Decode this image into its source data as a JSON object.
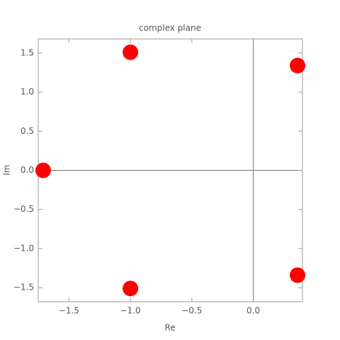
{
  "chart_data": {
    "type": "scatter",
    "title": "complex plane",
    "x_label": "Re",
    "y_label": "Im",
    "x": [
      -1.71,
      -1.0,
      -1.0,
      0.36,
      0.36
    ],
    "values": [
      0,
      1.51,
      -1.51,
      1.34,
      -1.34
    ],
    "color": "#ff0000",
    "xlim": [
      -1.75,
      0.4
    ],
    "ylim": [
      -1.68,
      1.68
    ],
    "xticks": [
      {
        "value": -1.5,
        "label": "−1.5"
      },
      {
        "value": -1.0,
        "label": "−1.0"
      },
      {
        "value": -0.5,
        "label": "−0.5"
      },
      {
        "value": 0,
        "label": "0.0"
      }
    ],
    "yticks": [
      {
        "value": -1.5,
        "label": "−1.5"
      },
      {
        "value": -1.0,
        "label": "−1.0"
      },
      {
        "value": -0.5,
        "label": "−0.5"
      },
      {
        "value": 0,
        "label": "0.0"
      },
      0.5,
      {
        "value": 1.0,
        "label": "1.0"
      },
      1.5
    ]
  }
}
